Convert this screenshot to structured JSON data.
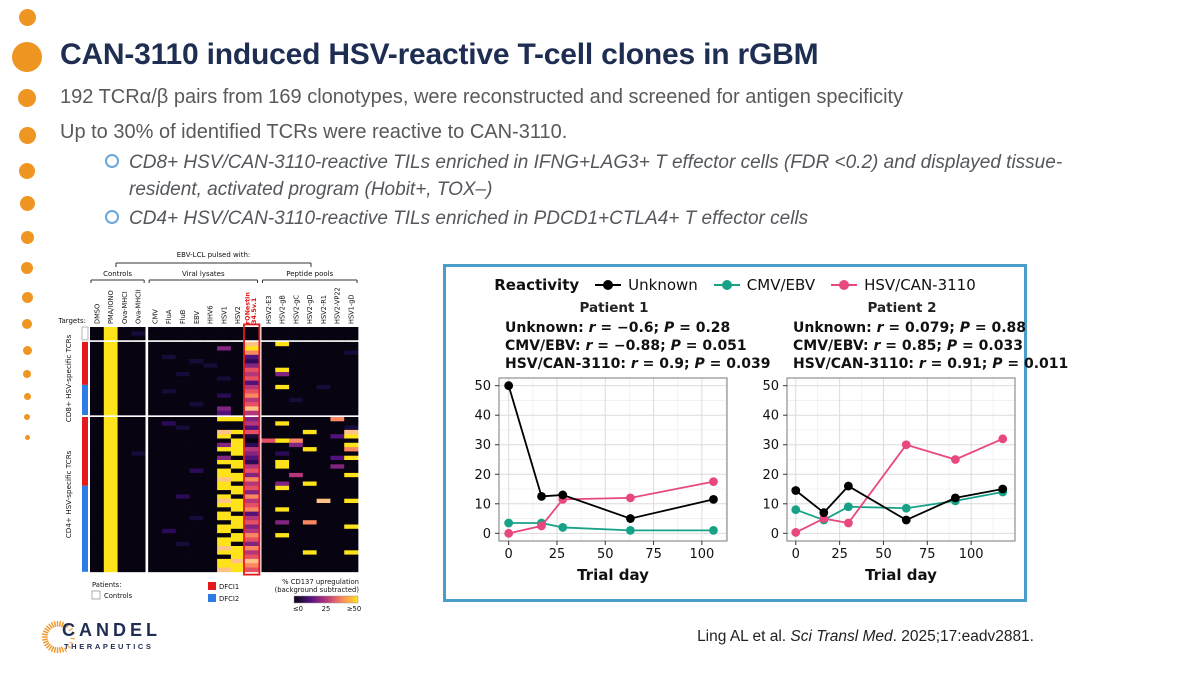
{
  "accent": {
    "orange": "#ef9522",
    "navy": "#1e2d52",
    "body_gray": "#595959",
    "panel_border": "#4a9dc9",
    "sub_bullet_blue": "#6aa7dc"
  },
  "header": {
    "title": "CAN-3110 induced HSV-reactive T-cell clones in rGBM",
    "bullets": [
      "192 TCRα/β pairs from 169 clonotypes, were reconstructed and screened for antigen specificity",
      "Up to 30% of identified TCRs were reactive to CAN-3110."
    ],
    "sub_bullets": [
      "CD8+ HSV/CAN-3110-reactive TILs enriched in IFNG+LAG3+ T effector  cells (FDR <0.2) and displayed tissue-resident, activated program (Hobit+, TOX–)",
      "CD4+ HSV/CAN-3110-reactive TILs enriched in PDCD1+CTLA4+ T effector cells"
    ]
  },
  "heatmap": {
    "top_bracket_label": "EBV-LCL pulsed with:",
    "targets_label": "Targets:",
    "col_groups": [
      {
        "label": "Controls",
        "cols": [
          "DMSO",
          "PMA/IONO",
          "Ova-MHCI",
          "Ova-MHCII"
        ]
      },
      {
        "label": "Viral lysates",
        "cols": [
          "CMV",
          "FluA",
          "FluB",
          "EBV",
          "HHV6",
          "HSV1",
          "HSV2",
          "rQNestin|34.5v.1"
        ]
      },
      {
        "label": "Peptide pools",
        "cols": [
          "HSV2-E3",
          "HSV2-gB",
          "HSV2-gC",
          "HSV2-gD",
          "HSV2-R1",
          "HSV2-VP22",
          "HSV1-gD"
        ]
      }
    ],
    "highlight_col_index": 11,
    "highlight_color": "#e3191c",
    "palette": [
      "#070310",
      "#160b39",
      "#2b0b57",
      "#51127c",
      "#812581",
      "#b5367a",
      "#e55064",
      "#fb8761",
      "#fec287",
      "#ffe31a"
    ],
    "sections": [
      {
        "name": "controls",
        "label": "",
        "sidebar": [
          {
            "color": "#ffffff",
            "rows": 3,
            "outline": true
          }
        ],
        "rows": [
          "0900 00000000 0000000",
          "0901 00000000 0000000",
          "0900 00000000 0000000"
        ]
      },
      {
        "name": "cd8",
        "label": "CD8+ HSV-specific TCRs",
        "sidebar": [
          {
            "color": "#e3191c",
            "rows": 10
          },
          {
            "color": "#2b7ce5",
            "rows": 7
          }
        ],
        "rows": [
          "0900 00000008 0900000",
          "0900 00000409 0000000",
          "0900 00000007 0000001",
          "0900 01000003 0000000",
          "0900 00010002 0000000",
          "0900 00001004 0000000",
          "0900 00000006 0900000",
          "0900 00100005 0400000",
          "0900 00000106 0000000",
          "0900 00000003 0000000",
          "0900 00000005 0900100",
          "0900 01000006 0000000",
          "0900 00000207 0000000",
          "0900 00000005 0010000",
          "0900 00010006 0000000",
          "0900 00000408 0000000",
          "0900 00000305 0000000"
        ]
      },
      {
        "name": "cd4",
        "label": "CD4+ HSV-specific TCRs",
        "sidebar": [
          {
            "color": "#e3191c",
            "rows": 16
          },
          {
            "color": "#2b7ce5",
            "rows": 20
          }
        ],
        "rows": [
          "0900 00000994 0000070",
          "0900 02000005 0900000",
          "0900 00100003 0000001",
          "0900 00000896 0009008",
          "0900 00000901 0000039",
          "0900 00000090 6970000",
          "0900 00000492 0040009",
          "0900 00000995 0009007",
          "0901 00000094 0200000",
          "0900 00000403 0000039",
          "0900 00000992 0900000",
          "0900 00000095 0900040",
          "0900 00020906 0000000",
          "0900 00000994 0050009",
          "0900 00000897 0000000",
          "0900 00000905 0409000",
          "0900 00000996 0900000",
          "0900 00000094 0000000",
          "0900 00200907 0000000",
          "0900 00000895 0000809",
          "0900 00000996 0000000",
          "0900 00000097 0900000",
          "0900 00000903 0000000",
          "0900 00010995 0000000",
          "0900 00000096 0407000",
          "0900 00000994 0000009",
          "0900 02000905 0000000",
          "0900 00000097 0900000",
          "0900 00000996 0000000",
          "0900 00100904 0000000",
          "0900 00000897 0000000",
          "0900 00000995 0009009",
          "0900 00000096 0000000",
          "0900 00000988 0000000",
          "0900 00000997 0000000",
          "0900 00000896 0000000"
        ]
      }
    ],
    "patients_legend": {
      "title": "Patients:",
      "items": [
        {
          "label": "Controls",
          "color": "#ffffff"
        },
        {
          "label": "DFCI1",
          "color": "#e3191c"
        },
        {
          "label": "DFCI2",
          "color": "#2b7ce5"
        }
      ]
    },
    "scale": {
      "label1": "% CD137 upregulation",
      "label2": "(background subtracted)",
      "ticks": [
        "≤0",
        "25",
        "≥50"
      ]
    }
  },
  "panel": {
    "legend_title": "Reactivity",
    "series": [
      {
        "name": "Unknown",
        "color": "#000000"
      },
      {
        "name": "CMV/EBV",
        "color": "#17a288"
      },
      {
        "name": "HSV/CAN-3110",
        "color": "#e8487e"
      }
    ],
    "stat_format": {
      "colon": ": ",
      "r": "r",
      "p": "P",
      "eq": " = ",
      "sep": "; "
    }
  },
  "chart_data": [
    {
      "type": "line",
      "title": "Patient 1",
      "xlabel": "Trial day",
      "ylabel": "",
      "xlim": [
        -5,
        113
      ],
      "ylim": [
        0,
        50
      ],
      "xticks": [
        0,
        25,
        50,
        75,
        100
      ],
      "yticks": [
        0,
        10,
        20,
        30,
        40,
        50
      ],
      "grid": true,
      "x": [
        0,
        17,
        28,
        63,
        106
      ],
      "series": [
        {
          "name": "CMV/EBV",
          "color": "#17a288",
          "values": [
            3.5,
            3.5,
            2,
            1,
            1
          ]
        },
        {
          "name": "HSV/CAN-3110",
          "color": "#e8487e",
          "values": [
            0,
            2.5,
            11.5,
            12,
            17.5
          ]
        },
        {
          "name": "Unknown",
          "color": "#000000",
          "values": [
            50,
            12.5,
            13,
            5,
            11.5
          ]
        }
      ],
      "stats": [
        {
          "series": "Unknown",
          "r": "−0.6",
          "p": "0.28"
        },
        {
          "series": "CMV/EBV",
          "r": "−0.88",
          "p": "0.051"
        },
        {
          "series": "HSV/CAN-3110",
          "r": "0.9",
          "p": "0.039"
        }
      ]
    },
    {
      "type": "line",
      "title": "Patient 2",
      "xlabel": "Trial day",
      "ylabel": "",
      "xlim": [
        -5,
        125
      ],
      "ylim": [
        0,
        50
      ],
      "xticks": [
        0,
        25,
        50,
        75,
        100
      ],
      "yticks": [
        0,
        10,
        20,
        30,
        40,
        50
      ],
      "grid": true,
      "x": [
        0,
        16,
        30,
        63,
        91,
        118
      ],
      "series": [
        {
          "name": "CMV/EBV",
          "color": "#17a288",
          "values": [
            8,
            4.5,
            9,
            8.5,
            11,
            14
          ]
        },
        {
          "name": "HSV/CAN-3110",
          "color": "#e8487e",
          "values": [
            0.3,
            5,
            3.5,
            30,
            25,
            32
          ]
        },
        {
          "name": "Unknown",
          "color": "#000000",
          "values": [
            14.5,
            7,
            16,
            4.5,
            12,
            15
          ]
        }
      ],
      "stats": [
        {
          "series": "Unknown",
          "r": "0.079",
          "p": "0.88"
        },
        {
          "series": "CMV/EBV",
          "r": "0.85",
          "p": "0.033"
        },
        {
          "series": "HSV/CAN-3110",
          "r": "0.91",
          "p": "0.011"
        }
      ]
    }
  ],
  "footer": {
    "citation_pre": "Ling AL et al. ",
    "citation_italic": "Sci Transl Med",
    "citation_post": ". 2025;17:eadv2881.",
    "logo_line1": "CANDEL",
    "logo_line2": "THERAPEUTICS"
  }
}
